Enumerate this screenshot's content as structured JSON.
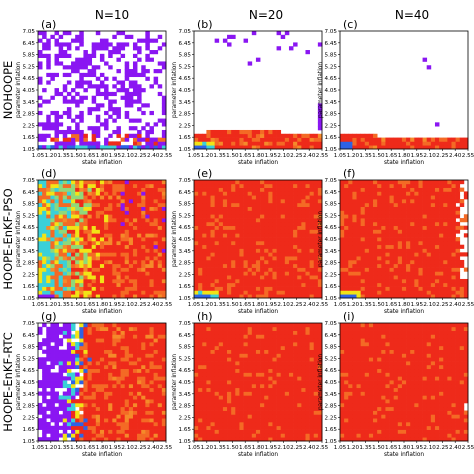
{
  "chart_data": {
    "type": "heatmap",
    "columns": [
      "N=10",
      "N=20",
      "N=40"
    ],
    "rows": [
      "NOHOOPE",
      "HOOPE-EnKF-PSO",
      "HOOPE-EnKF-RTC"
    ],
    "panel_letters": [
      [
        "(a)",
        "(b)",
        "(c)"
      ],
      [
        "(d)",
        "(e)",
        "(f)"
      ],
      [
        "(g)",
        "(h)",
        "(i)"
      ]
    ],
    "xlabel": "state inflation",
    "ylabel": "parameter inflation",
    "x_ticks": [
      "1.05",
      "1.20",
      "1.35",
      "1.50",
      "1.65",
      "1.80",
      "1.95",
      "2.10",
      "2.25",
      "2.40",
      "2.55"
    ],
    "y_ticks": [
      "1.05",
      "1.65",
      "2.25",
      "2.85",
      "3.45",
      "4.05",
      "4.65",
      "5.25",
      "5.85",
      "6.45",
      "7.05"
    ],
    "xlim": [
      1.05,
      2.55
    ],
    "ylim": [
      1.05,
      7.05
    ],
    "grid_size": [
      31,
      31
    ],
    "colors": {
      "red": "#ee2a1a",
      "orange": "#f46a25",
      "yellow": "#f2e316",
      "cyan": "#3ad0d8",
      "blue": "#2e62e6",
      "violet": "#8a16f2",
      "white": "#ffffff"
    }
  }
}
